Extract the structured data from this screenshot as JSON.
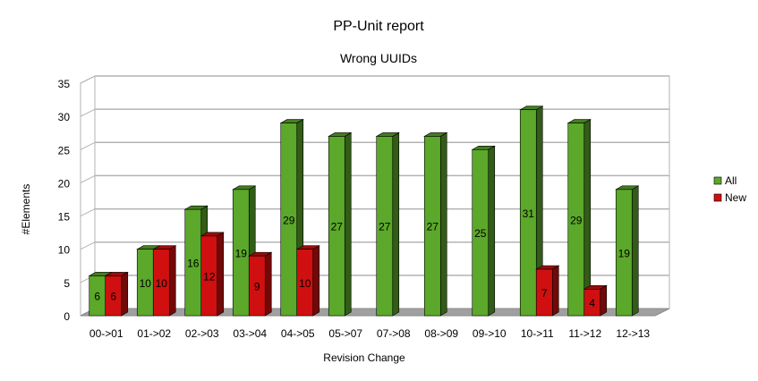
{
  "chart_data": {
    "type": "bar",
    "title": "PP-Unit report",
    "subtitle": "Wrong UUIDs",
    "xlabel": "Revision Change",
    "ylabel": "#Elements",
    "ylim": [
      0,
      35
    ],
    "yticks": [
      0,
      5,
      10,
      15,
      20,
      25,
      30,
      35
    ],
    "grid": true,
    "legend_position": "right",
    "categories": [
      "00->01",
      "01->02",
      "02->03",
      "03->04",
      "04->05",
      "05->07",
      "07->08",
      "08->09",
      "09->10",
      "10->11",
      "11->12",
      "12->13"
    ],
    "series": [
      {
        "name": "All",
        "color": "#5ba82a",
        "values": [
          6,
          10,
          16,
          19,
          29,
          27,
          27,
          27,
          25,
          31,
          29,
          19
        ]
      },
      {
        "name": "New",
        "color": "#d01010",
        "values": [
          6,
          10,
          12,
          9,
          10,
          null,
          null,
          null,
          null,
          7,
          4,
          null
        ]
      }
    ]
  }
}
